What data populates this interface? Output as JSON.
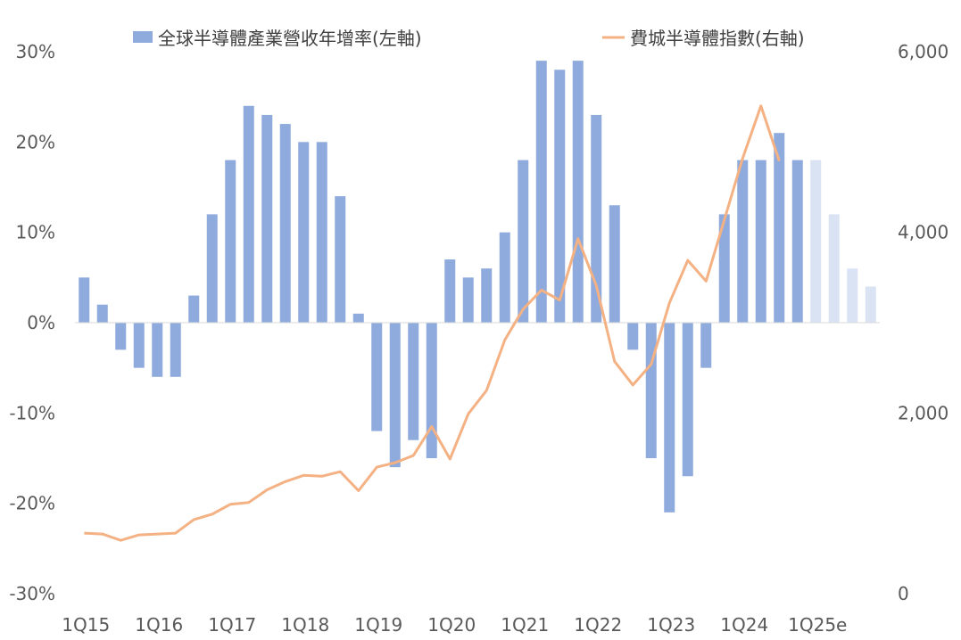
{
  "chart_data": {
    "type": "bar+line",
    "title": "",
    "categories": [
      "1Q15",
      "2Q15",
      "3Q15",
      "4Q15",
      "1Q16",
      "2Q16",
      "3Q16",
      "4Q16",
      "1Q17",
      "2Q17",
      "3Q17",
      "4Q17",
      "1Q18",
      "2Q18",
      "3Q18",
      "4Q18",
      "1Q19",
      "2Q19",
      "3Q19",
      "4Q19",
      "1Q20",
      "2Q20",
      "3Q20",
      "4Q20",
      "1Q21",
      "2Q21",
      "3Q21",
      "4Q21",
      "1Q22",
      "2Q22",
      "3Q22",
      "4Q22",
      "1Q23",
      "2Q23",
      "3Q23",
      "4Q23",
      "1Q24",
      "2Q24",
      "3Q24",
      "4Q24",
      "1Q25e",
      "2Q25e",
      "3Q25e",
      "4Q25e"
    ],
    "x_tick_labels": [
      "1Q15",
      "1Q16",
      "1Q17",
      "1Q18",
      "1Q19",
      "1Q20",
      "1Q21",
      "1Q22",
      "1Q23",
      "1Q24",
      "1Q25e"
    ],
    "series": [
      {
        "name": "全球半導體產業營收年增率(左軸)",
        "type": "bar",
        "axis": "left",
        "color": "#8FAADC",
        "forecast_color": "#DAE3F3",
        "values": [
          5,
          2,
          -3,
          -5,
          -6,
          -6,
          3,
          12,
          18,
          24,
          23,
          22,
          20,
          20,
          14,
          1,
          -12,
          -16,
          -13,
          -15,
          7,
          5,
          6,
          10,
          18,
          29,
          28,
          29,
          23,
          13,
          -3,
          -15,
          -21,
          -17,
          -5,
          12,
          18,
          18,
          21,
          18,
          18,
          12,
          6,
          4
        ],
        "forecast_from_index": 40
      },
      {
        "name": "費城半導體指數(右軸)",
        "type": "line",
        "axis": "right",
        "color": "#F4B183",
        "values": [
          670,
          660,
          590,
          650,
          660,
          670,
          820,
          880,
          990,
          1010,
          1150,
          1240,
          1310,
          1300,
          1350,
          1140,
          1400,
          1450,
          1530,
          1850,
          1490,
          1990,
          2250,
          2810,
          3150,
          3360,
          3250,
          3930,
          3410,
          2570,
          2310,
          2540,
          3220,
          3690,
          3460,
          4140,
          4820,
          5400,
          4790,
          null,
          null,
          null,
          null,
          null
        ]
      }
    ],
    "y_left": {
      "min": -30,
      "max": 30,
      "ticks": [
        "30%",
        "20%",
        "10%",
        "0%",
        "-10%",
        "-20%",
        "-30%"
      ]
    },
    "y_right": {
      "min": 0,
      "max": 6000,
      "ticks": [
        "6,000",
        "4,000",
        "2,000",
        "0"
      ]
    },
    "legend": {
      "position": "top"
    },
    "grid": false
  }
}
